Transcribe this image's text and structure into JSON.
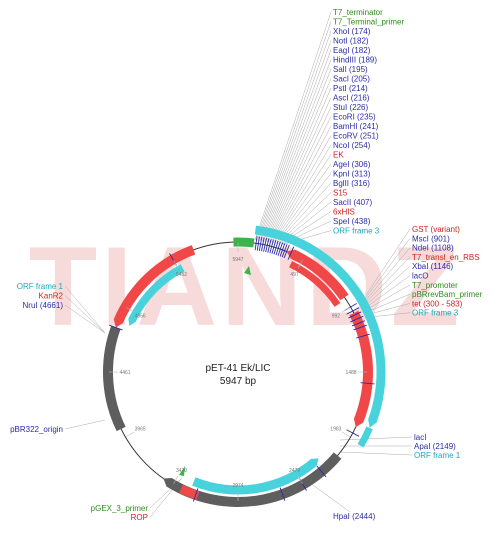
{
  "plasmid": {
    "name": "pET-41 Ek/LIC",
    "size_label": "5947 bp",
    "total_bp": 5947
  },
  "watermark": "TIANDZ",
  "colors": {
    "enzyme": "#2b2ba8",
    "feature": "#d42020",
    "primer": "#2e8b1e",
    "orf": "#18a8b8",
    "red_arrow": "#f04848",
    "cyan_arrow": "#48d3dc",
    "gray_arrow": "#5e5e5e",
    "green_arrow": "#3cb44b",
    "backbone": "#333333"
  },
  "position_ticks": [
    "5947",
    "497",
    "992",
    "1488",
    "1983",
    "2479",
    "2974",
    "3470",
    "3965",
    "4461",
    "4956",
    "5452"
  ],
  "labels": {
    "top": [
      {
        "text": "T7_terminator",
        "type": "primer"
      },
      {
        "text": "T7_Terminal_primer",
        "type": "primer"
      },
      {
        "text": "XhoI (174)",
        "type": "enzyme"
      },
      {
        "text": "NotI (182)",
        "type": "enzyme"
      },
      {
        "text": "EagI (182)",
        "type": "enzyme"
      },
      {
        "text": "HindIII (189)",
        "type": "enzyme"
      },
      {
        "text": "SalI (195)",
        "type": "enzyme"
      },
      {
        "text": "SacI (205)",
        "type": "enzyme"
      },
      {
        "text": "PstI (214)",
        "type": "enzyme"
      },
      {
        "text": "AscI (216)",
        "type": "enzyme"
      },
      {
        "text": "StuI (226)",
        "type": "enzyme"
      },
      {
        "text": "EcoRI (235)",
        "type": "enzyme"
      },
      {
        "text": "BamHI (241)",
        "type": "enzyme"
      },
      {
        "text": "EcoRV (251)",
        "type": "enzyme"
      },
      {
        "text": "NcoI (254)",
        "type": "enzyme"
      },
      {
        "text": "EK",
        "type": "feature"
      },
      {
        "text": "AgeI (306)",
        "type": "enzyme"
      },
      {
        "text": "KpnI (313)",
        "type": "enzyme"
      },
      {
        "text": "BglII (316)",
        "type": "enzyme"
      },
      {
        "text": "S15",
        "type": "feature"
      },
      {
        "text": "SacII (407)",
        "type": "enzyme"
      },
      {
        "text": "6xHIS",
        "type": "feature"
      },
      {
        "text": "SpeI (438)",
        "type": "enzyme"
      },
      {
        "text": "ORF frame 3",
        "type": "orf"
      }
    ],
    "right": [
      {
        "text": "GST (variant)",
        "type": "feature"
      },
      {
        "text": "MscI (901)",
        "type": "enzyme"
      },
      {
        "text": "NdeI (1108)",
        "type": "enzyme"
      },
      {
        "text": "T7_transl_en_RBS",
        "type": "feature"
      },
      {
        "text": "XbaI (1146)",
        "type": "enzyme"
      },
      {
        "text": "lacO",
        "type": "enzyme"
      },
      {
        "text": "T7_promoter",
        "type": "primer"
      },
      {
        "text": "pBRrevBam_primer",
        "type": "primer"
      },
      {
        "text": "tet (300 - 583)",
        "type": "feature"
      },
      {
        "text": "ORF frame 3",
        "type": "orf"
      }
    ],
    "lower_right": [
      {
        "text": "lacI",
        "type": "enzyme"
      },
      {
        "text": "ApaI (2149)",
        "type": "enzyme"
      },
      {
        "text": "ORF frame 1",
        "type": "orf"
      }
    ],
    "hpai": {
      "text": "HpaI (2444)",
      "type": "enzyme"
    },
    "left": [
      {
        "text": "ORF frame 1",
        "type": "orf"
      },
      {
        "text": "KanR2",
        "type": "feature"
      },
      {
        "text": "NruI (4661)",
        "type": "enzyme"
      }
    ],
    "origin": {
      "text": "pBR322_origin",
      "type": "enzyme"
    },
    "bottom_left": [
      {
        "text": "pGEX_3_primer",
        "type": "primer"
      },
      {
        "text": "ROP",
        "type": "feature"
      }
    ]
  }
}
